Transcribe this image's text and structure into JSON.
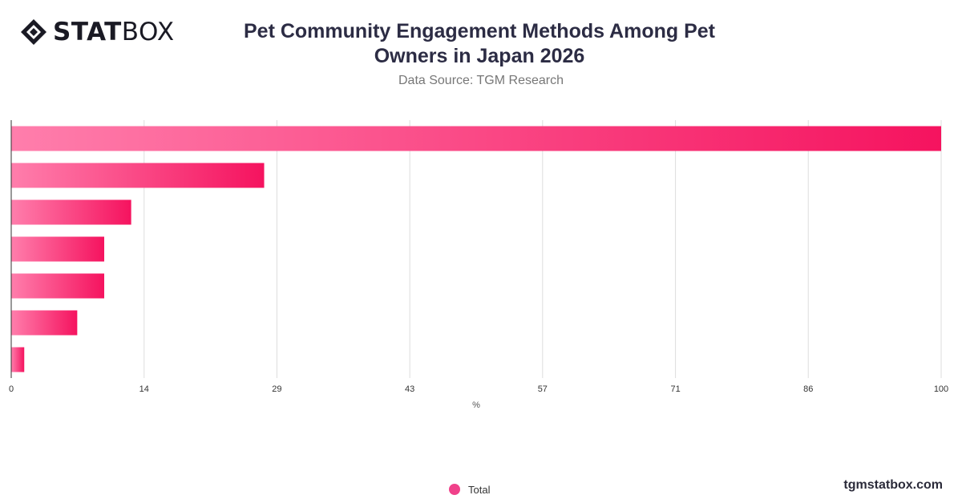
{
  "brand": {
    "name_bold": "STAT",
    "name_light": "BOX",
    "website": "tgmstatbox.com"
  },
  "header": {
    "title": "Pet Community Engagement Methods Among Pet Owners in Japan 2026",
    "subtitle": "Data Source: TGM Research"
  },
  "colors": {
    "bar_start": "#ff7eac",
    "bar_end": "#f5135f",
    "grid": "#dddddd",
    "axis": "#333333",
    "legend_dot": "#f0418a"
  },
  "chart_data": {
    "type": "bar",
    "orientation": "horizontal",
    "xlabel": "%",
    "xlim": [
      0,
      100
    ],
    "x_ticks": [
      "0",
      "14",
      "29",
      "43",
      "57",
      "71",
      "86",
      "100"
    ],
    "x_tick_values": [
      0,
      14.29,
      28.57,
      42.86,
      57.14,
      71.43,
      85.71,
      100
    ],
    "series": [
      {
        "name": "Total",
        "values": [
          100,
          27.2,
          12.9,
          10,
          10,
          7.1,
          1.4
        ]
      }
    ],
    "grid": true,
    "legend_position": "bottom"
  }
}
